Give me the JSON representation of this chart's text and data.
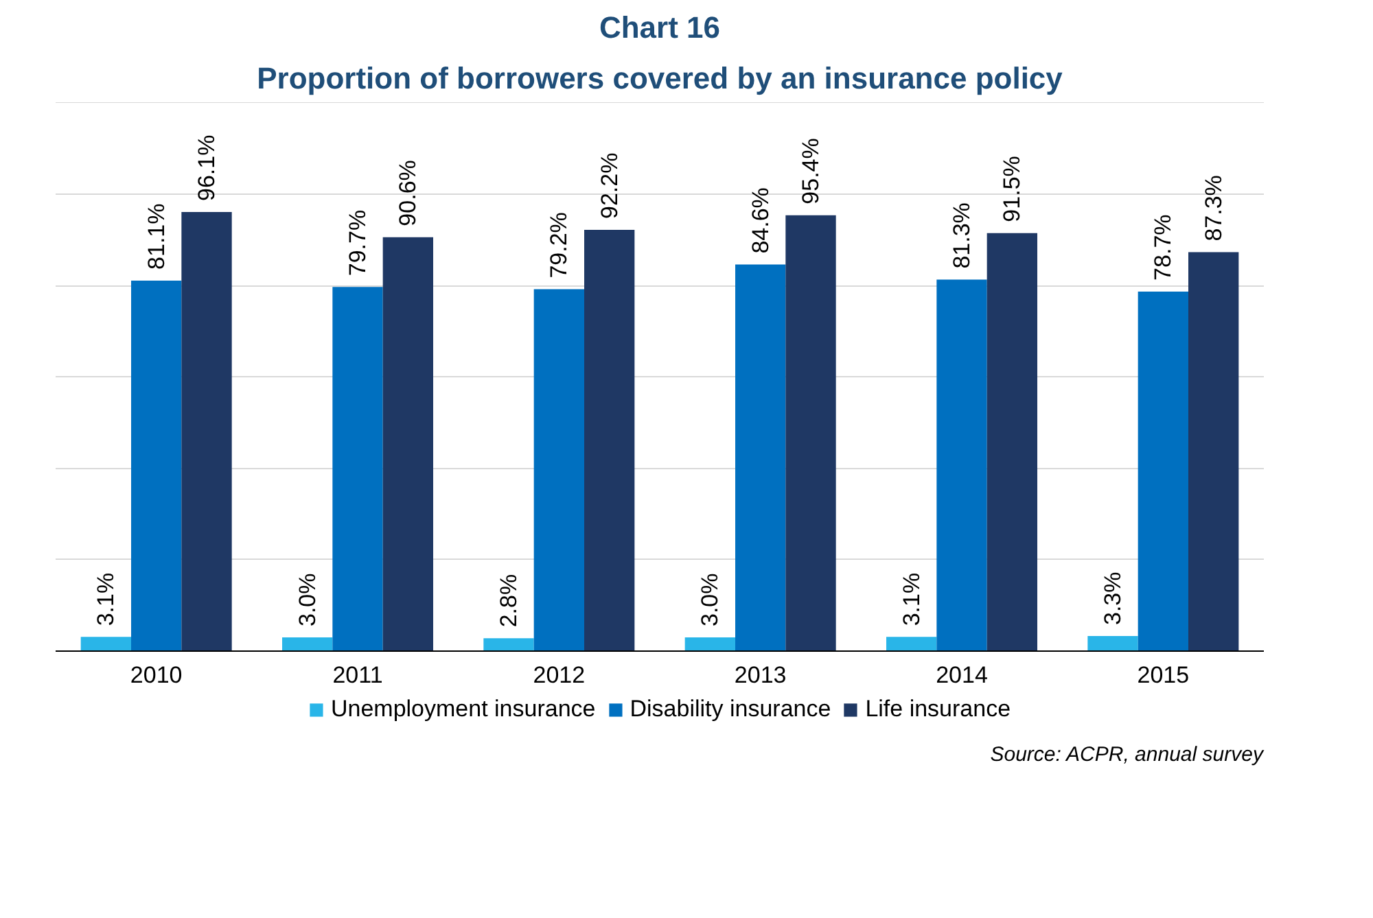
{
  "chart_data": {
    "type": "bar",
    "title": "Chart 16",
    "subtitle": "Proportion of borrowers covered by an insurance policy",
    "categories": [
      "2010",
      "2011",
      "2012",
      "2013",
      "2014",
      "2015"
    ],
    "series": [
      {
        "name": "Unemployment insurance",
        "color": "#29b5e8",
        "values": [
          3.1,
          3.0,
          2.8,
          3.0,
          3.1,
          3.3
        ],
        "value_labels": [
          "3.1%",
          "3.0%",
          "2.8%",
          "3.0%",
          "3.1%",
          "3.3%"
        ]
      },
      {
        "name": "Disability insurance",
        "color": "#0070c0",
        "values": [
          81.1,
          79.7,
          79.2,
          84.6,
          81.3,
          78.7
        ],
        "value_labels": [
          "81.1%",
          "79.7%",
          "79.2%",
          "84.6%",
          "81.3%",
          "78.7%"
        ]
      },
      {
        "name": "Life insurance",
        "color": "#1f3864",
        "values": [
          96.1,
          90.6,
          92.2,
          95.4,
          91.5,
          87.3
        ],
        "value_labels": [
          "96.1%",
          "90.6%",
          "92.2%",
          "95.4%",
          "91.5%",
          "87.3%"
        ]
      }
    ],
    "tick_labels": "x",
    "grid": "y",
    "legend": "bottom",
    "annotations": [
      "Source: ACPR, annual survey"
    ]
  }
}
